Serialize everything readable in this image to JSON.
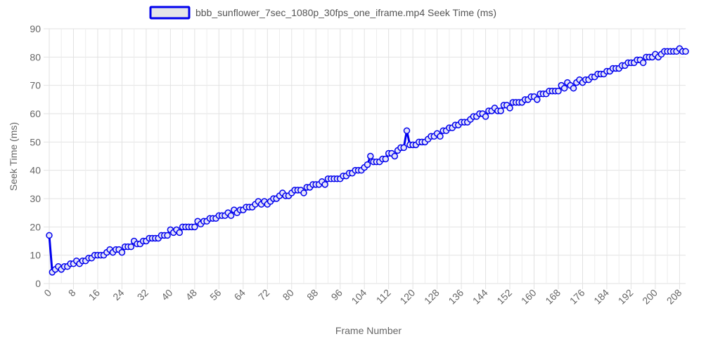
{
  "chart_data": {
    "type": "line",
    "legend": {
      "label": "bbb_sunflower_7sec_1080p_30fps_one_iframe.mp4 Seek Time (ms)",
      "position": "top-center",
      "swatch_fill": "#e5e5e8"
    },
    "xlabel": "Frame Number",
    "ylabel": "Seek Time (ms)",
    "xlim": [
      0,
      210
    ],
    "ylim": [
      0,
      90
    ],
    "x_ticks": [
      0,
      8,
      16,
      24,
      32,
      40,
      48,
      56,
      64,
      72,
      80,
      88,
      96,
      104,
      112,
      120,
      128,
      136,
      144,
      152,
      160,
      168,
      176,
      184,
      192,
      200,
      208
    ],
    "y_ticks": [
      0,
      10,
      20,
      30,
      40,
      50,
      60,
      70,
      80,
      90
    ],
    "grid": true,
    "series": [
      {
        "name": "bbb_sunflower_7sec_1080p_30fps_one_iframe.mp4 Seek Time (ms)",
        "color": "#0000ee",
        "x": [
          0,
          1,
          2,
          3,
          4,
          5,
          6,
          7,
          8,
          9,
          10,
          11,
          12,
          13,
          14,
          15,
          16,
          17,
          18,
          19,
          20,
          21,
          22,
          23,
          24,
          25,
          26,
          27,
          28,
          29,
          30,
          31,
          32,
          33,
          34,
          35,
          36,
          37,
          38,
          39,
          40,
          41,
          42,
          43,
          44,
          45,
          46,
          47,
          48,
          49,
          50,
          51,
          52,
          53,
          54,
          55,
          56,
          57,
          58,
          59,
          60,
          61,
          62,
          63,
          64,
          65,
          66,
          67,
          68,
          69,
          70,
          71,
          72,
          73,
          74,
          75,
          76,
          77,
          78,
          79,
          80,
          81,
          82,
          83,
          84,
          85,
          86,
          87,
          88,
          89,
          90,
          91,
          92,
          93,
          94,
          95,
          96,
          97,
          98,
          99,
          100,
          101,
          102,
          103,
          104,
          105,
          106,
          107,
          108,
          109,
          110,
          111,
          112,
          113,
          114,
          115,
          116,
          117,
          118,
          119,
          120,
          121,
          122,
          123,
          124,
          125,
          126,
          127,
          128,
          129,
          130,
          131,
          132,
          133,
          134,
          135,
          136,
          137,
          138,
          139,
          140,
          141,
          142,
          143,
          144,
          145,
          146,
          147,
          148,
          149,
          150,
          151,
          152,
          153,
          154,
          155,
          156,
          157,
          158,
          159,
          160,
          161,
          162,
          163,
          164,
          165,
          166,
          167,
          168,
          169,
          170,
          171,
          172,
          173,
          174,
          175,
          176,
          177,
          178,
          179,
          180,
          181,
          182,
          183,
          184,
          185,
          186,
          187,
          188,
          189,
          190,
          191,
          192,
          193,
          194,
          195,
          196,
          197,
          198,
          199,
          200,
          201,
          202,
          203,
          204,
          205,
          206,
          207,
          208,
          209,
          210
        ],
        "values": [
          17,
          4,
          5,
          6,
          5,
          6,
          6,
          7,
          7,
          8,
          7,
          8,
          8,
          9,
          9,
          10,
          10,
          10,
          10,
          11,
          12,
          11,
          12,
          12,
          11,
          13,
          13,
          13,
          15,
          14,
          14,
          15,
          15,
          16,
          16,
          16,
          16,
          17,
          17,
          17,
          19,
          18,
          19,
          18,
          20,
          20,
          20,
          20,
          20,
          22,
          21,
          22,
          22,
          23,
          23,
          23,
          24,
          24,
          24,
          25,
          24,
          26,
          25,
          26,
          26,
          27,
          27,
          27,
          28,
          29,
          28,
          29,
          28,
          29,
          30,
          30,
          31,
          32,
          31,
          31,
          32,
          33,
          33,
          33,
          32,
          34,
          34,
          35,
          35,
          35,
          36,
          35,
          37,
          37,
          37,
          37,
          37,
          38,
          38,
          39,
          39,
          40,
          40,
          40,
          41,
          42,
          45,
          43,
          43,
          43,
          44,
          44,
          46,
          46,
          45,
          47,
          48,
          48,
          54,
          49,
          49,
          49,
          50,
          50,
          50,
          51,
          52,
          52,
          53,
          52,
          54,
          54,
          55,
          55,
          56,
          56,
          57,
          57,
          57,
          58,
          59,
          59,
          60,
          60,
          59,
          61,
          61,
          62,
          61,
          61,
          63,
          63,
          62,
          64,
          64,
          64,
          64,
          65,
          65,
          66,
          66,
          65,
          67,
          67,
          67,
          68,
          68,
          68,
          68,
          70,
          69,
          71,
          70,
          69,
          71,
          72,
          71,
          72,
          72,
          73,
          73,
          74,
          74,
          74,
          75,
          75,
          76,
          76,
          76,
          77,
          77,
          78,
          78,
          78,
          79,
          79,
          78,
          80,
          80,
          80,
          81,
          80,
          81,
          82,
          82,
          82,
          82,
          82,
          83,
          82,
          82
        ]
      }
    ]
  }
}
